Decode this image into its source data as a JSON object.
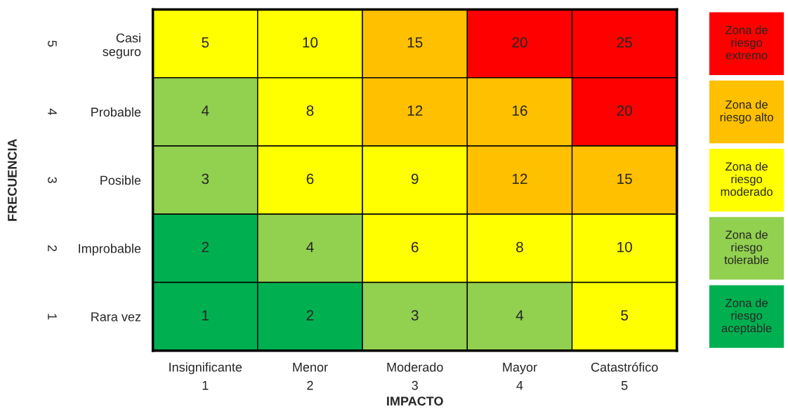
{
  "chart_data": [
    {
      "type": "heatmap",
      "xlabel": "IMPACTO",
      "ylabel": "FRECUENCIA",
      "categories": [
        "Insignificante\n1",
        "Menor\n2",
        "Moderado\n3",
        "Mayor\n4",
        "Catastrófico\n5"
      ],
      "y_categories": [
        "Casi\nseguro",
        "Probable",
        "Posible",
        "Improbable",
        "Rara vez"
      ],
      "y2_categories": [
        "5",
        "4",
        "3",
        "2",
        "1"
      ],
      "cells": [
        [
          5,
          10,
          15,
          20,
          25
        ],
        [
          4,
          8,
          12,
          16,
          20
        ],
        [
          3,
          6,
          9,
          12,
          15
        ],
        [
          2,
          4,
          6,
          8,
          10
        ],
        [
          1,
          2,
          3,
          4,
          5
        ]
      ],
      "colors": [
        [
          "#ffff00",
          "#ffff00",
          "#ffc000",
          "#ff0000",
          "#ff0000"
        ],
        [
          "#92d050",
          "#ffff00",
          "#ffc000",
          "#ffc000",
          "#ff0000"
        ],
        [
          "#92d050",
          "#ffff00",
          "#ffff00",
          "#ffc000",
          "#ffc000"
        ],
        [
          "#00b050",
          "#92d050",
          "#ffff00",
          "#ffff00",
          "#ffff00"
        ],
        [
          "#00b050",
          "#00b050",
          "#92d050",
          "#92d050",
          "#ffff00"
        ]
      ],
      "data_labels": true
    },
    {
      "type": "other",
      "annotations": [
        "Zona de\nriesgo\nextremo",
        "Zona de\nriesgo alto",
        "Zona de\nriesgo\nmoderado",
        "Zona de\nriesgo\ntolerable",
        "Zona de\nriesgo\naceptable"
      ],
      "colors": [
        "#ff0000",
        "#ffc000",
        "#ffff00",
        "#92d050",
        "#00b050"
      ]
    }
  ]
}
